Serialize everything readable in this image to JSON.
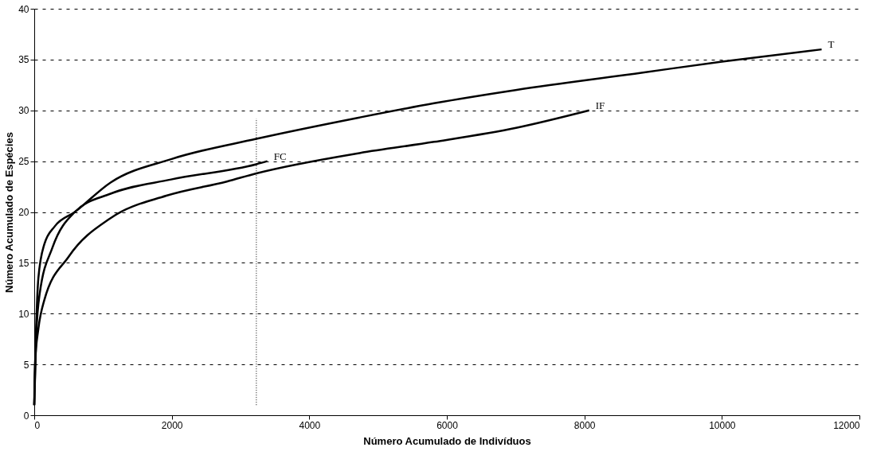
{
  "chart_data": {
    "type": "line",
    "xlabel": "Número Acumulado de Indivíduos",
    "ylabel": "Número Acumulado de Espécies",
    "xlim": [
      0,
      12000
    ],
    "xticks": [
      0,
      2000,
      4000,
      6000,
      8000,
      10000,
      12000
    ],
    "ylim": [
      0,
      40
    ],
    "yticks": [
      0,
      5,
      10,
      15,
      20,
      25,
      30,
      35,
      40
    ],
    "grid": "y",
    "marker": "none",
    "line_style": "solid",
    "series": [
      {
        "name": "T",
        "color": "#000000",
        "x": [
          0,
          24,
          60,
          145,
          300,
          590,
          1110,
          1990,
          3230,
          4730,
          5815,
          7000,
          8830,
          10000,
          11450
        ],
        "values": [
          1,
          7.8,
          13.5,
          16.8,
          18.6,
          20,
          22.9,
          25.2,
          27.2,
          29.3,
          30.7,
          32,
          33.7,
          34.8,
          36
        ]
      },
      {
        "name": "IF",
        "color": "#000000",
        "x": [
          0,
          10,
          60,
          145,
          500,
          1110,
          1920,
          2800,
          3230,
          4730,
          5815,
          7020,
          8070
        ],
        "values": [
          1,
          5,
          8.5,
          11.3,
          15.6,
          19.4,
          21.6,
          23,
          23.8,
          25.8,
          26.9,
          28.3,
          30
        ]
      },
      {
        "name": "FC",
        "color": "#000000",
        "x": [
          0,
          30,
          80,
          265,
          590,
          1110,
          1990,
          3230,
          3390
        ],
        "values": [
          1,
          8,
          12,
          16.5,
          20,
          21.8,
          23.2,
          24.7,
          25
        ]
      },
      {
        "type": "line",
        "line_style": "dotted",
        "color": "#000000",
        "x": [
          3230,
          3230
        ],
        "values": [
          1,
          29.2
        ]
      }
    ]
  }
}
